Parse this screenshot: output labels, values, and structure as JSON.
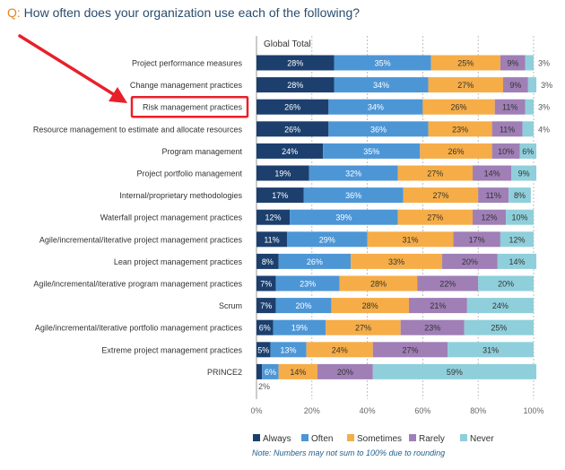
{
  "question": {
    "prefix": "Q:",
    "text": "How often does your organization use each of the following?"
  },
  "highlight": {
    "label": "Risk management practices",
    "accent_color": "#e8202a"
  },
  "chart_data": {
    "type": "bar",
    "orientation": "horizontal",
    "stacked": true,
    "column_header": "Global Total",
    "categories": [
      "Project performance measures",
      "Change management practices",
      "Risk management practices",
      "Resource management to estimate and allocate resources",
      "Program management",
      "Project portfolio management",
      "Internal/proprietary methodologies",
      "Waterfall project management practices",
      "Agile/incremental/iterative project management practices",
      "Lean project management practices",
      "Agile/incremental/iterative program management practices",
      "Scrum",
      "Agile/incremental/iterative portfolio management practices",
      "Extreme project management practices",
      "PRINCE2"
    ],
    "series": [
      {
        "name": "Always",
        "color": "#1c3f6e",
        "values": [
          28,
          28,
          26,
          26,
          24,
          19,
          17,
          12,
          11,
          8,
          7,
          7,
          6,
          5,
          2
        ]
      },
      {
        "name": "Often",
        "color": "#4d96d6",
        "values": [
          35,
          34,
          34,
          36,
          35,
          32,
          36,
          39,
          29,
          26,
          23,
          20,
          19,
          13,
          6
        ]
      },
      {
        "name": "Sometimes",
        "color": "#f6ad47",
        "values": [
          25,
          27,
          26,
          23,
          26,
          27,
          27,
          27,
          31,
          33,
          28,
          28,
          27,
          24,
          14
        ]
      },
      {
        "name": "Rarely",
        "color": "#9f7fb6",
        "values": [
          9,
          9,
          11,
          11,
          10,
          14,
          11,
          12,
          17,
          20,
          22,
          21,
          23,
          27,
          20
        ]
      },
      {
        "name": "Never",
        "color": "#8fcfdb",
        "values": [
          3,
          3,
          3,
          4,
          6,
          9,
          8,
          10,
          12,
          14,
          20,
          24,
          25,
          31,
          59
        ]
      }
    ],
    "labels": [
      [
        "28%",
        "35%",
        "25%",
        "9%",
        "3%"
      ],
      [
        "28%",
        "34%",
        "27%",
        "9%",
        "3%"
      ],
      [
        "26%",
        "34%",
        "26%",
        "11%",
        "3%"
      ],
      [
        "26%",
        "36%",
        "23%",
        "11%",
        "4%"
      ],
      [
        "24%",
        "35%",
        "26%",
        "10%",
        "6%"
      ],
      [
        "19%",
        "32%",
        "27%",
        "14%",
        "9%"
      ],
      [
        "17%",
        "36%",
        "27%",
        "11%",
        "8%"
      ],
      [
        "12%",
        "39%",
        "27%",
        "12%",
        "10%"
      ],
      [
        "11%",
        "29%",
        "31%",
        "17%",
        "12%"
      ],
      [
        "8%",
        "26%",
        "33%",
        "20%",
        "14%"
      ],
      [
        "7%",
        "23%",
        "28%",
        "22%",
        "20%"
      ],
      [
        "7%",
        "20%",
        "28%",
        "21%",
        "24%"
      ],
      [
        "6%",
        "19%",
        "27%",
        "23%",
        "25%"
      ],
      [
        "5%",
        "13%",
        "24%",
        "27%",
        "31%"
      ],
      [
        "2%",
        "6%",
        "14%",
        "20%",
        "59%"
      ]
    ],
    "xlim": [
      0,
      100
    ],
    "x_ticks": [
      "0%",
      "20%",
      "40%",
      "60%",
      "80%",
      "100%"
    ],
    "legend": [
      "Always",
      "Often",
      "Sometimes",
      "Rarely",
      "Never"
    ],
    "legend_position": "bottom",
    "note": "Note: Numbers may not sum to 100% due to rounding"
  }
}
